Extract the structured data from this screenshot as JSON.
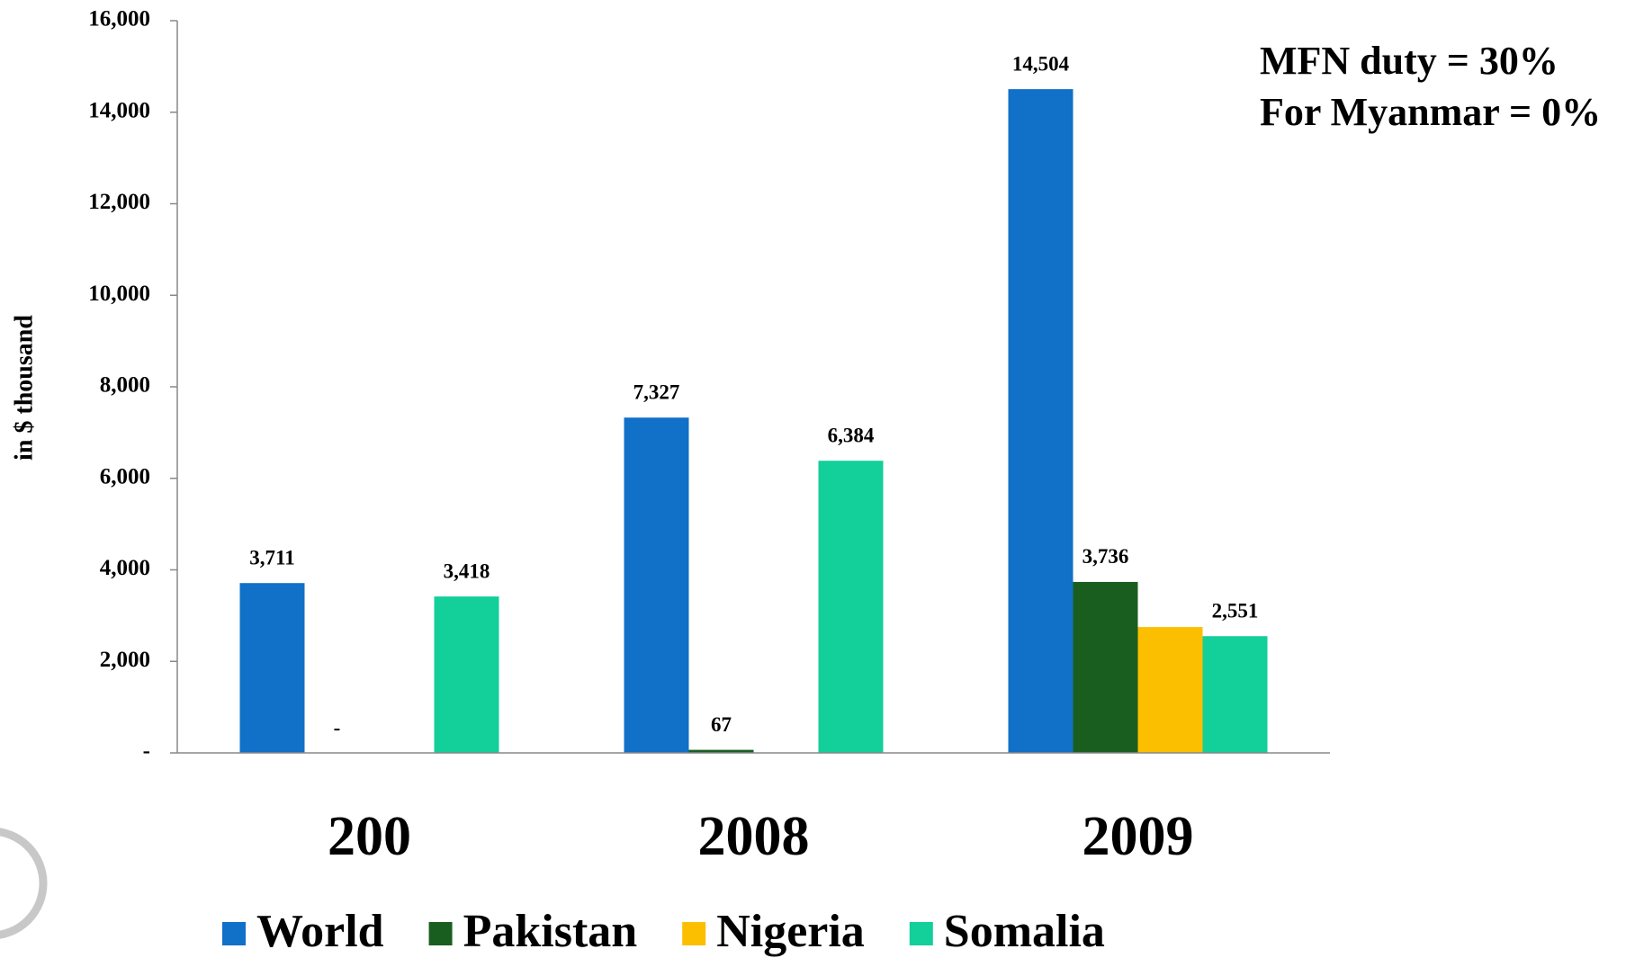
{
  "chart_data": {
    "type": "bar",
    "y_label": "in $ thousand",
    "annotations": [
      "MFN duty = 30%",
      "For Myanmar = 0%"
    ],
    "categories": [
      "200",
      "2008",
      "2009"
    ],
    "series": [
      {
        "name": "World",
        "color": "#1170c8",
        "values": [
          3711,
          7327,
          14504
        ],
        "value_labels": [
          "3,711",
          "7,327",
          "14,504"
        ]
      },
      {
        "name": "Pakistan",
        "color": "#1a5e1f",
        "values": [
          0,
          67,
          3736
        ],
        "value_labels": [
          "-",
          "67",
          "3,736"
        ]
      },
      {
        "name": "Nigeria",
        "color": "#fbbf00",
        "values": [
          null,
          null,
          2750
        ]
      },
      {
        "name": "Somalia",
        "color": "#13cf9a",
        "values": [
          3418,
          6384,
          2551
        ],
        "value_labels": [
          "3,418",
          "6,384",
          "2,551"
        ]
      }
    ],
    "ylim": [
      0,
      16000
    ],
    "yticks": [
      {
        "value": 0,
        "label": "-"
      },
      {
        "value": 2000,
        "label": "2,000"
      },
      {
        "value": 4000,
        "label": "4,000"
      },
      {
        "value": 6000,
        "label": "6,000"
      },
      {
        "value": 8000,
        "label": "8,000"
      },
      {
        "value": 10000,
        "label": "10,000"
      },
      {
        "value": 12000,
        "label": "12,000"
      },
      {
        "value": 14000,
        "label": "14,000"
      },
      {
        "value": 16000,
        "label": "16,000"
      }
    ],
    "legend": "bottom"
  }
}
